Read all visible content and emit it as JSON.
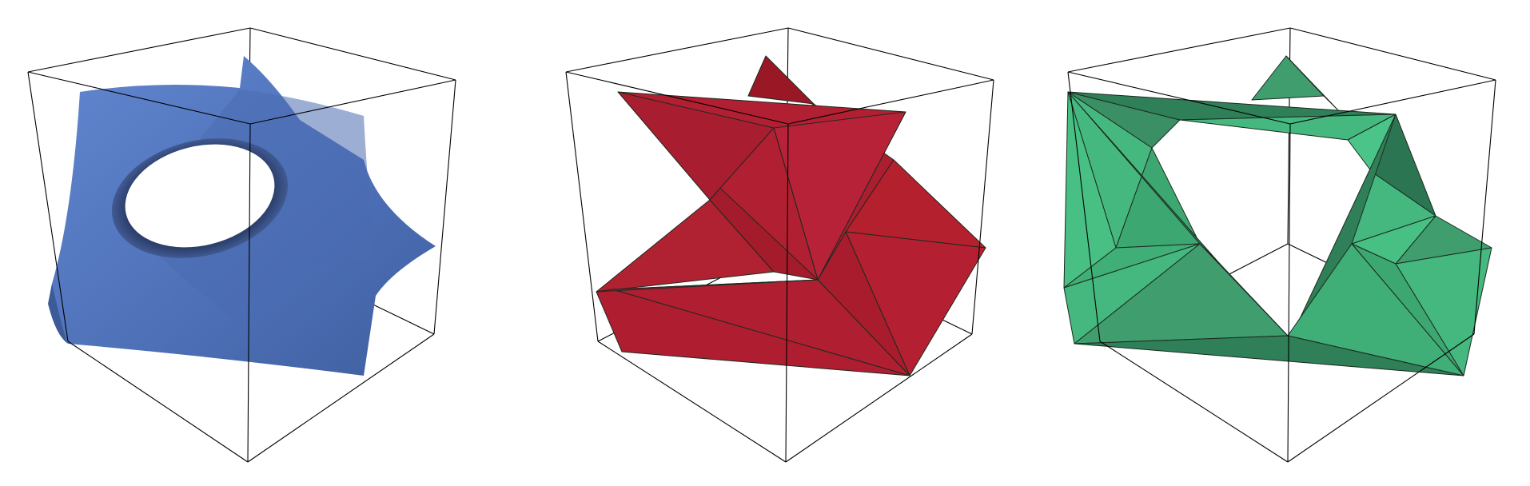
{
  "figure": {
    "panels": [
      {
        "id": "smooth-surface",
        "color": "#5578c2",
        "shade": "#3b5894"
      },
      {
        "id": "polyhedral-surface-red",
        "color": "#b11f32",
        "shade": "#8f1726"
      },
      {
        "id": "polyhedral-surface-green",
        "color": "#44b87f",
        "shade": "#2f7f58"
      }
    ]
  }
}
